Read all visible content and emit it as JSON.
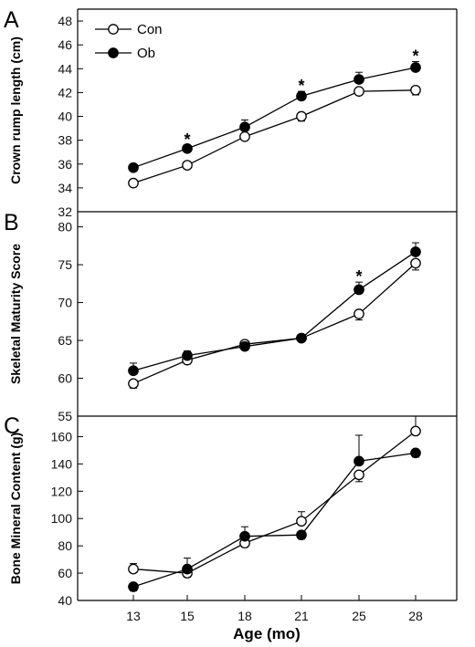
{
  "x_axis": {
    "label": "Age (mo)",
    "categories": [
      "13",
      "15",
      "18",
      "21",
      "25",
      "28"
    ]
  },
  "legend": {
    "con": "Con",
    "ob": "Ob",
    "con_style": "open circle",
    "ob_style": "filled circle"
  },
  "chart_data": [
    {
      "type": "line",
      "panel": "A",
      "ylabel": "Crown rump length (cm)",
      "ylim": [
        32,
        49
      ],
      "yticks": [
        32,
        34,
        36,
        38,
        40,
        42,
        44,
        46,
        48
      ],
      "categories": [
        "13",
        "15",
        "18",
        "21",
        "25",
        "28"
      ],
      "series": [
        {
          "name": "Con",
          "values": [
            34.4,
            35.9,
            38.3,
            40.0,
            42.1,
            42.2
          ],
          "errors": [
            0.3,
            0.2,
            0.3,
            0.4,
            0.3,
            0.4
          ]
        },
        {
          "name": "Ob",
          "values": [
            35.7,
            37.3,
            39.1,
            41.7,
            43.1,
            44.1
          ],
          "errors": [
            0.3,
            0.3,
            0.6,
            0.4,
            0.6,
            0.5
          ]
        }
      ],
      "significance": [
        "",
        "*",
        "",
        "*",
        "",
        "*"
      ],
      "legend": "top-left"
    },
    {
      "type": "line",
      "panel": "B",
      "ylabel": "Skeletal Maturity Score",
      "ylim": [
        55,
        82
      ],
      "yticks": [
        55,
        60,
        65,
        70,
        75,
        80
      ],
      "categories": [
        "13",
        "15",
        "18",
        "21",
        "25",
        "28"
      ],
      "series": [
        {
          "name": "Con",
          "values": [
            59.3,
            62.4,
            64.5,
            65.3,
            68.5,
            75.2
          ],
          "errors": [
            0.6,
            0.5,
            0.3,
            0.3,
            0.8,
            0.9
          ]
        },
        {
          "name": "Ob",
          "values": [
            61.0,
            63.0,
            64.2,
            65.3,
            71.7,
            76.7
          ],
          "errors": [
            1.0,
            0.6,
            0.4,
            0.3,
            1.0,
            1.2
          ]
        }
      ],
      "significance": [
        "",
        "",
        "",
        "",
        "*",
        ""
      ]
    },
    {
      "type": "line",
      "panel": "C",
      "ylabel": "Bone Mineral Content (g)",
      "ylim": [
        40,
        175
      ],
      "yticks": [
        40,
        60,
        80,
        100,
        120,
        140,
        160
      ],
      "categories": [
        "13",
        "15",
        "18",
        "21",
        "25",
        "28"
      ],
      "series": [
        {
          "name": "Con",
          "values": [
            63,
            60,
            82,
            98,
            132,
            164
          ],
          "errors": [
            4,
            3,
            3,
            7,
            5,
            11
          ]
        },
        {
          "name": "Ob",
          "values": [
            50,
            63,
            87,
            88,
            142,
            148
          ],
          "errors": [
            3,
            8,
            7,
            3,
            19,
            3
          ]
        }
      ],
      "significance": [
        "",
        "",
        "",
        "",
        "",
        ""
      ]
    }
  ]
}
